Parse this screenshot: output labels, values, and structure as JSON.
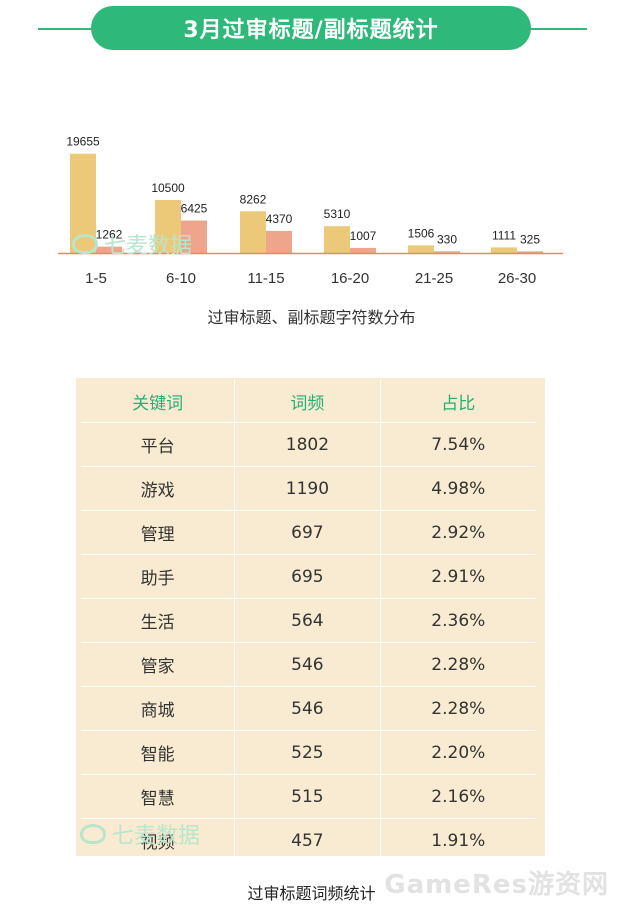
{
  "header": {
    "title": "3月过审标题/副标题统计"
  },
  "chart_data": {
    "type": "bar",
    "title": "3月过审标题/副标题统计",
    "xlabel": "过审标题、副标题字符数分布",
    "categories": [
      "1-5",
      "6-10",
      "11-15",
      "16-20",
      "21-25",
      "26-30"
    ],
    "series": [
      {
        "values": [
          19655,
          10500,
          8262,
          5310,
          1506,
          1111
        ],
        "color": "#ebc979"
      },
      {
        "values": [
          1262,
          6425,
          4370,
          1007,
          330,
          325
        ],
        "color": "#eda58b"
      }
    ],
    "ylim": [
      0,
      20000
    ],
    "grid": false
  },
  "table": {
    "headers": [
      "关键词",
      "词频",
      "占比"
    ],
    "rows": [
      [
        "平台",
        "1802",
        "7.54%"
      ],
      [
        "游戏",
        "1190",
        "4.98%"
      ],
      [
        "管理",
        "697",
        "2.92%"
      ],
      [
        "助手",
        "695",
        "2.91%"
      ],
      [
        "生活",
        "564",
        "2.36%"
      ],
      [
        "管家",
        "546",
        "2.28%"
      ],
      [
        "商城",
        "546",
        "2.28%"
      ],
      [
        "智能",
        "525",
        "2.20%"
      ],
      [
        "智慧",
        "515",
        "2.16%"
      ],
      [
        "视频",
        "457",
        "1.91%"
      ]
    ],
    "caption": "过审标题词频统计"
  },
  "watermarks": {
    "brand": "七麦数据",
    "site": "GameRes游资网"
  },
  "colors": {
    "accent": "#2eb87a",
    "table_bg": "#f8ebd1",
    "baseline": "#e8866a"
  }
}
